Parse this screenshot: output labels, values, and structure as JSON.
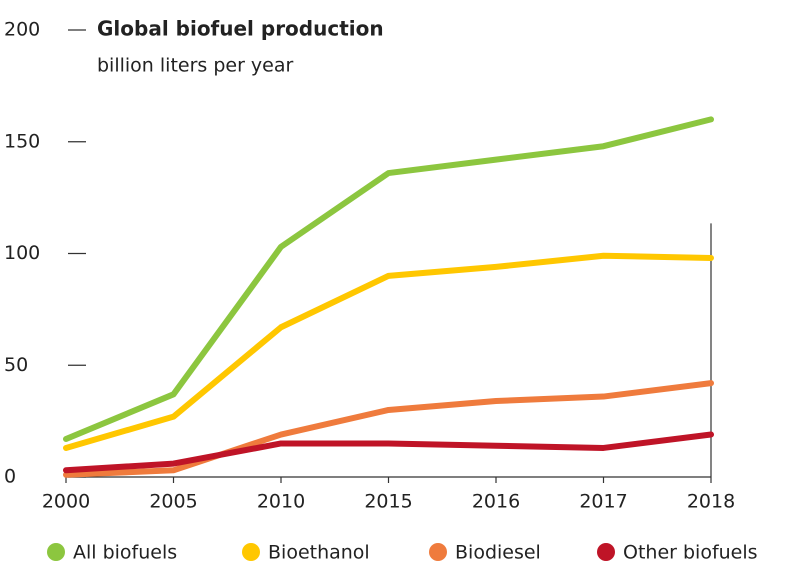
{
  "chart_data": {
    "type": "line",
    "title": "Global biofuel production",
    "subtitle": "billion liters per year",
    "categories": [
      "2000",
      "2005",
      "2010",
      "2015",
      "2016",
      "2017",
      "2018"
    ],
    "series": [
      {
        "name": "All biofuels",
        "color": "#8cc63f",
        "values": [
          17,
          37,
          103,
          136,
          142,
          148,
          160
        ]
      },
      {
        "name": "Bioethanol",
        "color": "#ffc700",
        "values": [
          13,
          27,
          67,
          90,
          94,
          99,
          98
        ]
      },
      {
        "name": "Biodiesel",
        "color": "#ef7b3d",
        "values": [
          1,
          3,
          19,
          30,
          34,
          36,
          42
        ]
      },
      {
        "name": "Other biofuels",
        "color": "#bf1427",
        "values": [
          3,
          6,
          15,
          15,
          14,
          13,
          19
        ]
      }
    ],
    "ylim": [
      0,
      200
    ],
    "yticks": [
      0,
      50,
      100,
      150,
      200
    ]
  }
}
